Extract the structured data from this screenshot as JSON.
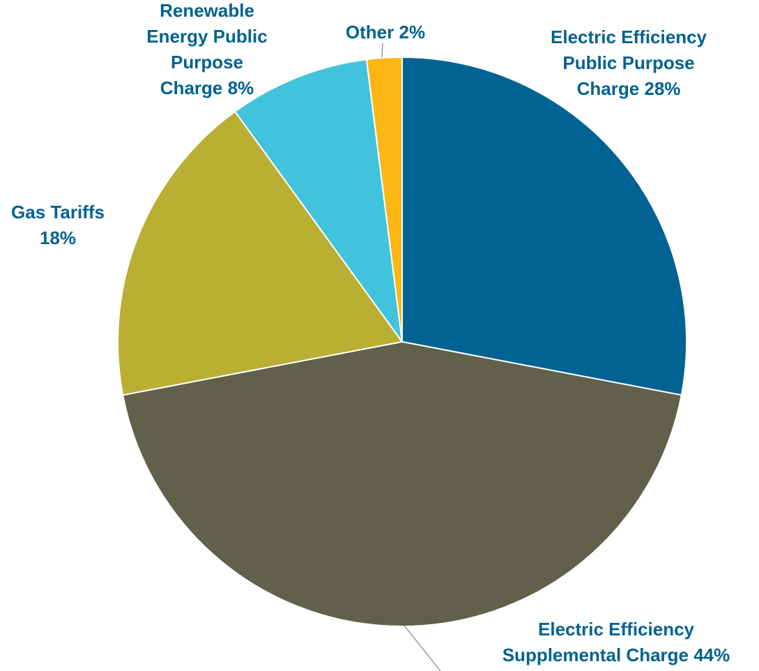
{
  "chart_data": {
    "type": "pie",
    "title": "",
    "start_angle_deg": 0,
    "direction": "clockwise",
    "label_color": "#00628F",
    "slices": [
      {
        "category": "Electric Efficiency Public Purpose Charge",
        "value": 28,
        "label_lines": [
          "Electric Efficiency",
          "Public Purpose",
          "Charge 28%"
        ],
        "color": "#006393"
      },
      {
        "category": "Electric Efficiency Supplemental Charge",
        "value": 44,
        "label_lines": [
          "Electric Efficiency",
          "Supplemental Charge 44%"
        ],
        "color": "#60604B"
      },
      {
        "category": "Gas Tariffs",
        "value": 18,
        "label_lines": [
          "Gas Tariffs",
          "18%"
        ],
        "color": "#BAAF33"
      },
      {
        "category": "Renewable Energy Public Purpose Charge",
        "value": 8,
        "label_lines": [
          "Renewable",
          "Energy Public",
          "Purpose",
          "Charge 8%"
        ],
        "color": "#42C3DD"
      },
      {
        "category": "Other",
        "value": 2,
        "label_lines": [
          "Other 2%"
        ],
        "color": "#FDB714"
      }
    ]
  }
}
